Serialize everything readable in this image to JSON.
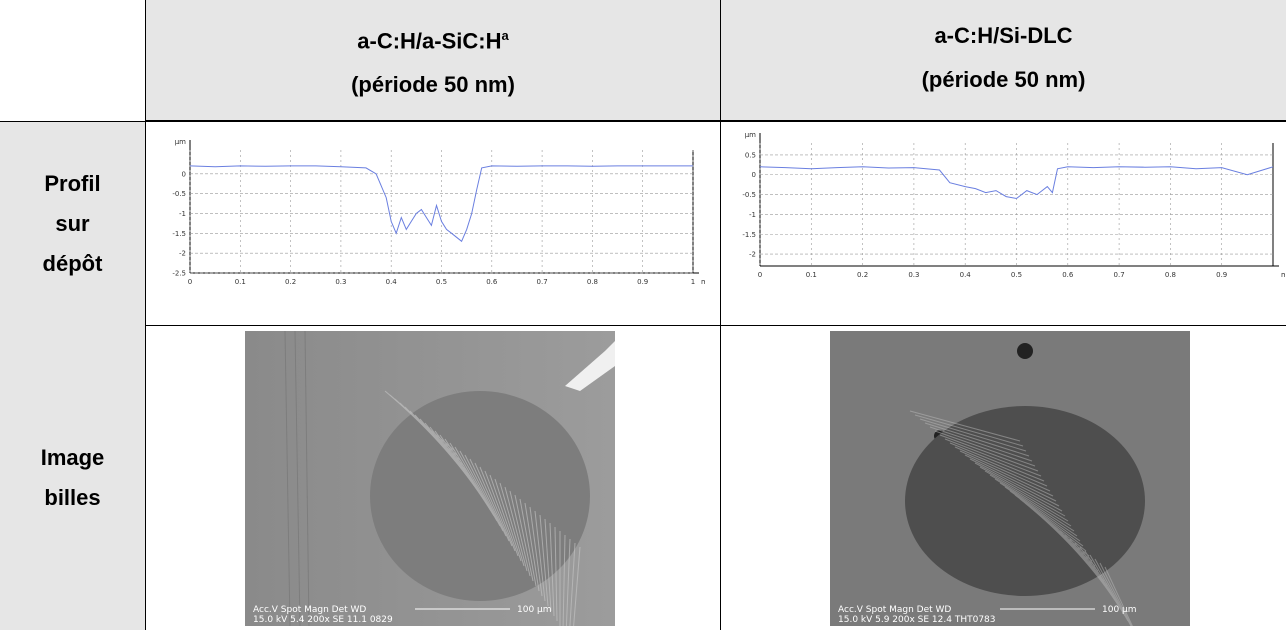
{
  "table": {
    "headers": [
      {
        "name": "a-C:H/a-SiC:H",
        "sup": "a",
        "period": "(période 50 nm)"
      },
      {
        "name": "a-C:H/Si-DLC",
        "period": "(période 50 nm)"
      }
    ],
    "row_labels": [
      [
        "Profil",
        "sur",
        "dépôt"
      ],
      [
        "Image",
        "billes"
      ]
    ],
    "profiles": [
      {
        "y_unit": "µm",
        "x_unit": "mm",
        "xlim": [
          0,
          1
        ],
        "ylim": [
          -2.5,
          0.6
        ],
        "yticks": [
          0,
          -0.5,
          -1,
          -1.5,
          -2,
          -2.5
        ],
        "xticks": [
          0,
          0.1,
          0.2,
          0.3,
          0.4,
          0.5,
          0.6,
          0.7,
          0.8,
          0.9,
          1
        ],
        "x": [
          0,
          0.05,
          0.1,
          0.15,
          0.2,
          0.25,
          0.3,
          0.35,
          0.37,
          0.39,
          0.4,
          0.41,
          0.42,
          0.43,
          0.44,
          0.45,
          0.46,
          0.47,
          0.48,
          0.49,
          0.5,
          0.51,
          0.52,
          0.53,
          0.54,
          0.55,
          0.56,
          0.57,
          0.58,
          0.6,
          0.65,
          0.7,
          0.75,
          0.8,
          0.85,
          0.9,
          0.95,
          1
        ],
        "values": [
          0.2,
          0.18,
          0.2,
          0.19,
          0.2,
          0.2,
          0.18,
          0.15,
          0.0,
          -0.6,
          -1.2,
          -1.5,
          -1.1,
          -1.4,
          -1.2,
          -1.0,
          -0.9,
          -1.1,
          -1.3,
          -0.8,
          -1.2,
          -1.4,
          -1.5,
          -1.6,
          -1.7,
          -1.4,
          -1.0,
          -0.4,
          0.15,
          0.2,
          0.19,
          0.2,
          0.2,
          0.19,
          0.2,
          0.2,
          0.2,
          0.2
        ]
      },
      {
        "y_unit": "µm",
        "x_unit": "mm",
        "xlim": [
          0,
          1
        ],
        "ylim": [
          -2.3,
          0.8
        ],
        "yticks": [
          0.5,
          0,
          -0.5,
          -1,
          -1.5,
          -2
        ],
        "xticks": [
          0,
          0.1,
          0.2,
          0.3,
          0.4,
          0.5,
          0.6,
          0.7,
          0.8,
          0.9
        ],
        "x": [
          0,
          0.05,
          0.1,
          0.15,
          0.2,
          0.25,
          0.3,
          0.35,
          0.37,
          0.4,
          0.42,
          0.44,
          0.46,
          0.48,
          0.5,
          0.52,
          0.54,
          0.56,
          0.57,
          0.58,
          0.6,
          0.65,
          0.7,
          0.75,
          0.8,
          0.85,
          0.9,
          0.95,
          1
        ],
        "values": [
          0.2,
          0.18,
          0.15,
          0.18,
          0.2,
          0.17,
          0.18,
          0.12,
          -0.2,
          -0.3,
          -0.35,
          -0.45,
          -0.4,
          -0.55,
          -0.6,
          -0.4,
          -0.5,
          -0.3,
          -0.45,
          0.15,
          0.2,
          0.18,
          0.2,
          0.19,
          0.2,
          0.15,
          0.18,
          0.0,
          0.2
        ]
      }
    ],
    "sem_captions": [
      [
        "Acc.V  Spot  Magn    Det  WD",
        "15.0 kV  5.4   200x    SE   11.1  0829",
        "100 µm"
      ],
      [
        "Acc.V  Spot  Magn    Det  WD",
        "15.0 kV  5.9   200x    SE   12.4  THT0783",
        "100 µm"
      ]
    ]
  }
}
